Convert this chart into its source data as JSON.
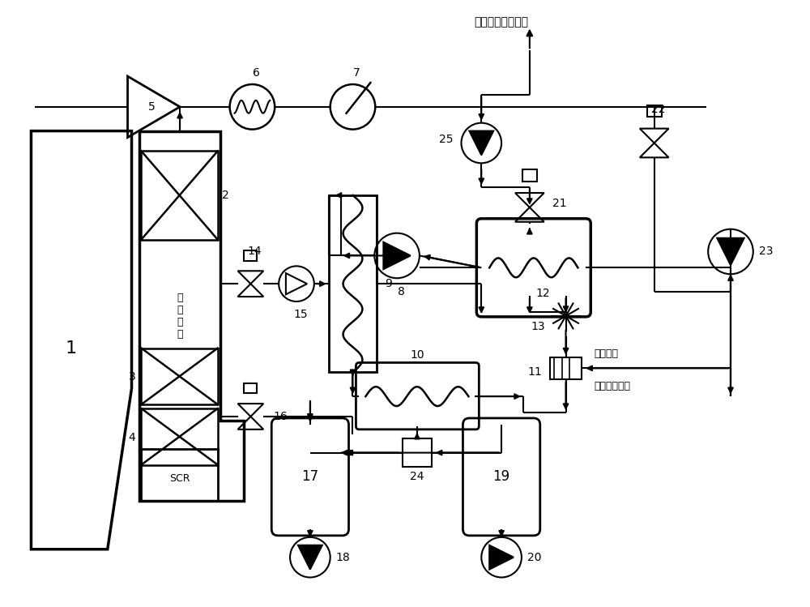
{
  "bg_color": "#ffffff",
  "lc": "#000000",
  "lw": 1.5,
  "label_top": "冷凝器循环冷却水",
  "label_air_in": "空气入口",
  "label_air_out": "高压空气出口",
  "label_smoke": "高\n温\n烟\n气",
  "label_scr": "SCR",
  "figw": 10.0,
  "figh": 7.49
}
